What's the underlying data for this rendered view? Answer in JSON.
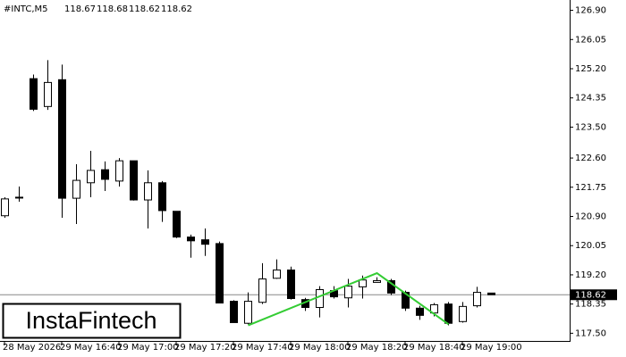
{
  "chart_data": {
    "type": "candlestick",
    "title": "#INTC,M5",
    "categories": [
      "28 May 2026",
      null,
      null,
      null,
      "29 May 16:40",
      null,
      null,
      null,
      "29 May 17:00",
      null,
      null,
      null,
      "29 May 17:20",
      null,
      null,
      null,
      "29 May 17:40",
      null,
      null,
      null,
      "29 May 18:00",
      null,
      null,
      null,
      "29 May 18:20",
      null,
      null,
      null,
      "29 May 18:40",
      null,
      null,
      null,
      "29 May 19:00",
      null,
      null
    ],
    "open": [
      120.92,
      121.44,
      124.91,
      124.1,
      124.88,
      121.43,
      121.88,
      122.26,
      121.93,
      122.52,
      121.38,
      121.88,
      121.05,
      120.3,
      120.22,
      120.11,
      118.43,
      117.79,
      118.4,
      119.1,
      119.34,
      118.48,
      118.25,
      118.74,
      118.53,
      118.85,
      118.98,
      119.03,
      118.69,
      118.23,
      118.09,
      118.35,
      117.84,
      118.3,
      118.67
    ],
    "high": [
      121.46,
      121.77,
      125.03,
      125.45,
      125.32,
      122.42,
      122.81,
      122.5,
      122.6,
      122.52,
      122.24,
      121.93,
      121.05,
      120.37,
      120.55,
      120.17,
      118.46,
      118.69,
      119.54,
      119.65,
      119.44,
      118.53,
      118.87,
      118.87,
      119.08,
      119.18,
      119.13,
      119.08,
      118.74,
      118.3,
      118.38,
      118.41,
      118.41,
      118.85,
      118.68
    ],
    "low": [
      120.86,
      121.33,
      123.97,
      124.0,
      120.86,
      120.68,
      121.46,
      121.64,
      121.77,
      121.36,
      120.55,
      120.74,
      120.27,
      119.7,
      119.75,
      118.38,
      117.81,
      117.76,
      118.35,
      119.08,
      118.48,
      118.15,
      117.96,
      118.51,
      118.25,
      118.51,
      118.98,
      118.61,
      118.15,
      117.89,
      117.99,
      117.73,
      117.81,
      118.25,
      118.62
    ],
    "close": [
      121.41,
      121.46,
      124.02,
      124.8,
      121.43,
      121.95,
      122.24,
      121.98,
      122.52,
      121.38,
      121.88,
      121.07,
      120.3,
      120.19,
      120.09,
      118.38,
      117.81,
      118.43,
      119.08,
      119.34,
      118.51,
      118.25,
      118.77,
      118.56,
      118.87,
      119.05,
      119.03,
      118.67,
      118.23,
      118.02,
      118.33,
      117.79,
      118.28,
      118.69,
      118.62
    ],
    "ylim": [
      117.25,
      127.2
    ],
    "yticks": [
      {
        "value": 126.9,
        "label": "126.90"
      },
      126.05,
      {
        "value": 125.2,
        "label": "125.20"
      },
      124.35,
      {
        "value": 123.5,
        "label": "123.50"
      },
      {
        "value": 122.6,
        "label": "122.60"
      },
      121.75,
      {
        "value": 120.9,
        "label": "120.90"
      },
      120.05,
      {
        "value": 119.2,
        "label": "119.20"
      },
      118.35,
      {
        "value": 117.5,
        "label": "117.50"
      }
    ],
    "last_price": 118.62,
    "up_color": "#ffffff",
    "down_color": "#000000",
    "pattern": {
      "color": "#33cc33",
      "x": [
        17,
        26,
        31
      ],
      "values": [
        117.73,
        119.25,
        117.76
      ]
    },
    "logo": "InstaFintech"
  }
}
